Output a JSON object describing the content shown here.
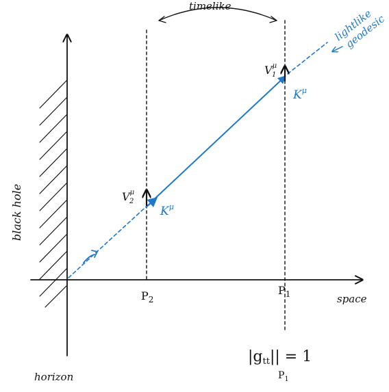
{
  "colors": {
    "ink": "#111111",
    "geodesic": "#1f78c8",
    "background": "#ffffff"
  },
  "labels": {
    "black_hole": "black hole",
    "horizon": "horizon",
    "space": "space",
    "timelike": "timelike",
    "lightlike_line1": "lightlike",
    "lightlike_line2": "geodesic",
    "point_p2": "P",
    "point_p2_sub": "2",
    "point_p1": "P",
    "point_p1_sub": "1",
    "velocity_1": "V",
    "velocity_1_sub": "1",
    "velocity_1_sup": "μ",
    "velocity_2": "V",
    "velocity_2_sub": "2",
    "velocity_2_sup": "μ",
    "k_vector_1": "K",
    "k_vector_1_sup": "μ",
    "k_vector_2": "K",
    "k_vector_2_sup": "μ",
    "norm_expression": "|g",
    "norm_sub": "tt",
    "norm_rhs": "|| = 1",
    "norm_eval_point": "P",
    "norm_eval_sub": "1"
  }
}
